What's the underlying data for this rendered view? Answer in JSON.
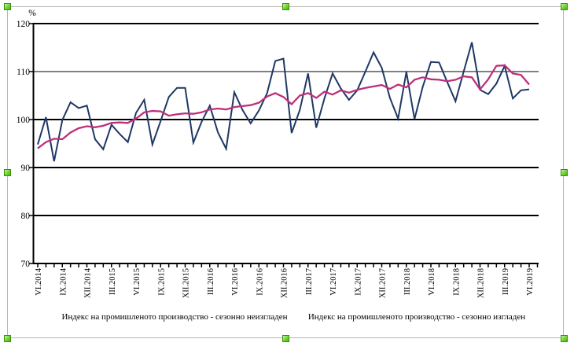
{
  "object_selection": {
    "handle_color": "#6fd42e",
    "frame_color": "#b8b5ae"
  },
  "chart_data": {
    "type": "line",
    "title": "",
    "ylabel": "%",
    "xlabel": "",
    "ylim": [
      70,
      120
    ],
    "yticks": [
      120,
      110,
      100,
      90,
      80,
      70
    ],
    "grid": "horizontal",
    "legend_position": "bottom",
    "x_tick_labels": [
      "VI.2014",
      "IX.2014",
      "XII.2014",
      "III.2015",
      "VI.2015",
      "IX.2015",
      "XII.2015",
      "III.2016",
      "VI.2016",
      "IX.2016",
      "XII.2016",
      "III.2017",
      "VI.2017",
      "IX.2017",
      "XII.2017",
      "III.2018",
      "VI.2018",
      "IX.2018",
      "XII.2018",
      "III.2019",
      "VI.2019"
    ],
    "months": [
      "VI.2014",
      "VII.2014",
      "VIII.2014",
      "IX.2014",
      "X.2014",
      "XI.2014",
      "XII.2014",
      "I.2015",
      "II.2015",
      "III.2015",
      "IV.2015",
      "V.2015",
      "VI.2015",
      "VII.2015",
      "VIII.2015",
      "IX.2015",
      "X.2015",
      "XI.2015",
      "XII.2015",
      "I.2016",
      "II.2016",
      "III.2016",
      "IV.2016",
      "V.2016",
      "VI.2016",
      "VII.2016",
      "VIII.2016",
      "IX.2016",
      "X.2016",
      "XI.2016",
      "XII.2016",
      "I.2017",
      "II.2017",
      "III.2017",
      "IV.2017",
      "V.2017",
      "VI.2017",
      "VII.2017",
      "VIII.2017",
      "IX.2017",
      "X.2017",
      "XI.2017",
      "XII.2017",
      "I.2018",
      "II.2018",
      "III.2018",
      "IV.2018",
      "V.2018",
      "VI.2018",
      "VII.2018",
      "VIII.2018",
      "IX.2018",
      "X.2018",
      "XI.2018",
      "XII.2018",
      "I.2019",
      "II.2019",
      "III.2019",
      "IV.2019",
      "V.2019",
      "VI.2019"
    ],
    "series": [
      {
        "name": "Индекс на промишленото производство - сезонно неизгладен",
        "color": "#1f3864",
        "values": [
          94.8,
          100.5,
          91.3,
          99.9,
          103.6,
          102.4,
          102.9,
          95.9,
          93.8,
          98.9,
          97.0,
          95.3,
          101.4,
          104.1,
          94.8,
          99.7,
          104.7,
          106.6,
          106.6,
          95.2,
          99.5,
          102.9,
          97.3,
          93.9,
          105.7,
          102.0,
          99.2,
          101.9,
          105.5,
          112.2,
          112.7,
          97.2,
          102.0,
          109.6,
          98.3,
          104.4,
          109.6,
          106.5,
          104.1,
          106.1,
          110.0,
          114.0,
          110.8,
          104.5,
          100.2,
          109.9,
          100.1,
          106.8,
          112.0,
          111.9,
          107.8,
          103.8,
          110.0,
          116.1,
          106.2,
          105.3,
          107.5,
          111.2,
          104.4,
          106.1,
          106.3
        ]
      },
      {
        "name": "Индекс на промишленото производство - сезонно изгладен",
        "color": "#be2f7b",
        "values": [
          94.0,
          95.3,
          96.0,
          95.9,
          97.3,
          98.2,
          98.6,
          98.4,
          98.7,
          99.3,
          99.4,
          99.3,
          100.2,
          101.5,
          101.8,
          101.7,
          100.8,
          101.1,
          101.3,
          101.2,
          101.5,
          102.1,
          102.3,
          102.1,
          102.6,
          102.8,
          103.0,
          103.5,
          104.8,
          105.5,
          104.7,
          103.2,
          105.0,
          105.5,
          104.5,
          105.8,
          105.2,
          106.1,
          105.6,
          106.2,
          106.6,
          106.9,
          107.2,
          106.4,
          107.3,
          106.7,
          108.3,
          108.8,
          108.4,
          108.3,
          108.0,
          108.3,
          109.0,
          108.8,
          106.3,
          108.4,
          111.2,
          111.3,
          109.6,
          109.3,
          107.3
        ]
      }
    ]
  }
}
